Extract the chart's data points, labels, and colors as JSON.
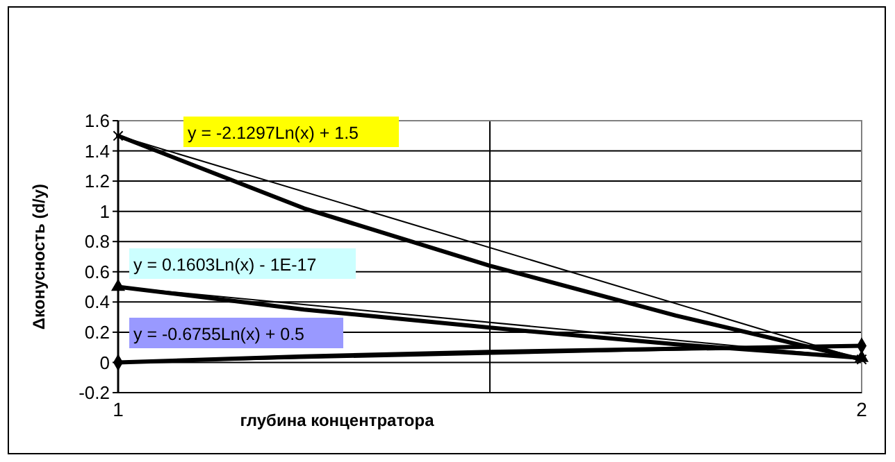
{
  "chart_data": {
    "type": "line",
    "ylabel": "Δконусность (d/y)",
    "xlabel": "глубина концентратора",
    "x": [
      1,
      2
    ],
    "xlim": [
      1,
      2
    ],
    "xticks": [
      1,
      {
        "value": 1.5,
        "label": null
      },
      2
    ],
    "ylim": [
      -0.2,
      1.6
    ],
    "yticks": [
      -0.2,
      0,
      0.2,
      0.4,
      0.6,
      0.8,
      1,
      1.2,
      1.4,
      1.6
    ],
    "grid": true,
    "series": [
      {
        "color": "#000000",
        "values": [
          1.5,
          0.02
        ],
        "marker": "cross"
      },
      {
        "color": "#000000",
        "values": [
          0.5,
          0.03
        ],
        "marker": "triangle"
      },
      {
        "color": "#000000",
        "values": [
          0,
          0.11
        ],
        "marker": "diamond"
      },
      {
        "color": "#000000",
        "x": [
          1,
          1.25,
          1.5,
          1.75,
          2
        ],
        "values": [
          1.5,
          1.02,
          0.64,
          0.31,
          0.02
        ],
        "marker": "none"
      },
      {
        "color": "#000000",
        "x": [
          1,
          1.25,
          1.5,
          1.75,
          2
        ],
        "values": [
          0.5,
          0.35,
          0.23,
          0.12,
          0.03
        ],
        "marker": "none"
      },
      {
        "color": "#000000",
        "x": [
          1,
          1.25,
          1.5,
          1.75,
          2
        ],
        "values": [
          0,
          0.04,
          0.07,
          0.09,
          0.11
        ],
        "marker": "none"
      }
    ],
    "annotations": [
      "y = -2.1297Ln(x) + 1.5",
      "y = 0.1603Ln(x) - 1E-17",
      "y = -0.6755Ln(x) + 0.5"
    ]
  }
}
